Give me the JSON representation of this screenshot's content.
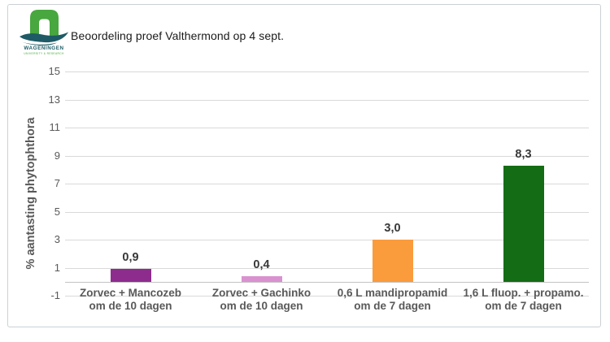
{
  "logo": {
    "line1": "WAGENINGEN",
    "line2": "UNIVERSITY & RESEARCH",
    "green": "#48a73e",
    "teal": "#1e5b66"
  },
  "colors": {
    "gridline": "#d9d9d9",
    "axis_line": "#c3c3c3",
    "axis_text": "#595959",
    "value_text": "#383838",
    "panel_border": "#ccd1d5"
  },
  "chart_data": {
    "type": "bar",
    "title": "Beoordeling proef Valthermond op 4 sept.",
    "ylabel": "% aantasting phytophthora",
    "xlabel": "",
    "ylim": [
      -1,
      15
    ],
    "yticks": [
      15,
      13,
      11,
      9,
      7,
      5,
      3,
      1,
      -1
    ],
    "grid": true,
    "legend": false,
    "categories": [
      "Zorvec + Mancozeb\nom de 10 dagen",
      "Zorvec + Gachinko\nom de 10 dagen",
      "0,6 L mandipropamid\nom de 7 dagen",
      "1,6 L fluop. + propamo.\nom de 7 dagen"
    ],
    "values": [
      0.9,
      0.4,
      3.0,
      8.3
    ],
    "value_labels": [
      "0,9",
      "0,4",
      "3,0",
      "8,3"
    ],
    "bar_colors": [
      "#8e2c8e",
      "#d992cf",
      "#fa9b3c",
      "#146c14"
    ]
  }
}
